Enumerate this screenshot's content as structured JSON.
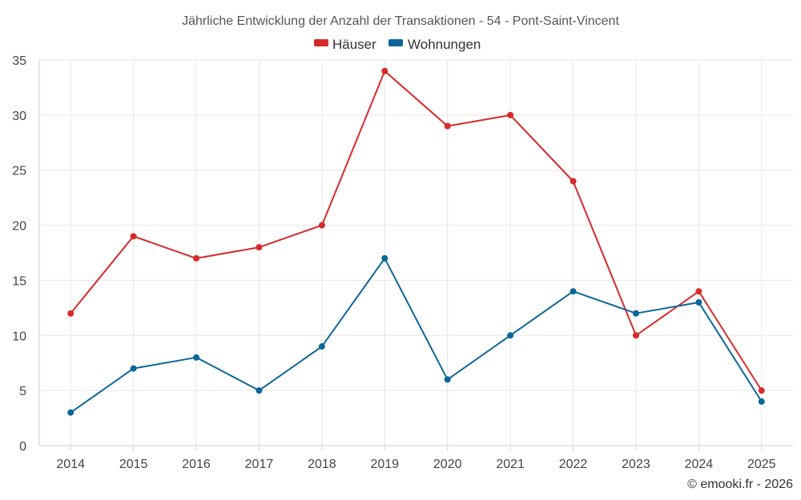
{
  "chart_data": {
    "type": "line",
    "title": "Jährliche Entwicklung der Anzahl der Transaktionen - 54 - Pont-Saint-Vincent",
    "categories": [
      "2014",
      "2015",
      "2016",
      "2017",
      "2018",
      "2019",
      "2020",
      "2021",
      "2022",
      "2023",
      "2024",
      "2025"
    ],
    "series": [
      {
        "name": "Häuser",
        "color": "#d62a2a",
        "values": [
          12,
          19,
          17,
          18,
          20,
          34,
          29,
          30,
          24,
          10,
          14,
          5
        ]
      },
      {
        "name": "Wohnungen",
        "color": "#0b6699",
        "values": [
          3,
          7,
          8,
          5,
          9,
          17,
          6,
          10,
          14,
          12,
          13,
          4
        ]
      }
    ],
    "ylim": [
      0,
      35
    ],
    "yticks": [
      0,
      5,
      10,
      15,
      20,
      25,
      30,
      35
    ],
    "xlabel": "",
    "ylabel": "",
    "grid": true,
    "legend": "top-center"
  },
  "credit": "© emooki.fr - 2026"
}
